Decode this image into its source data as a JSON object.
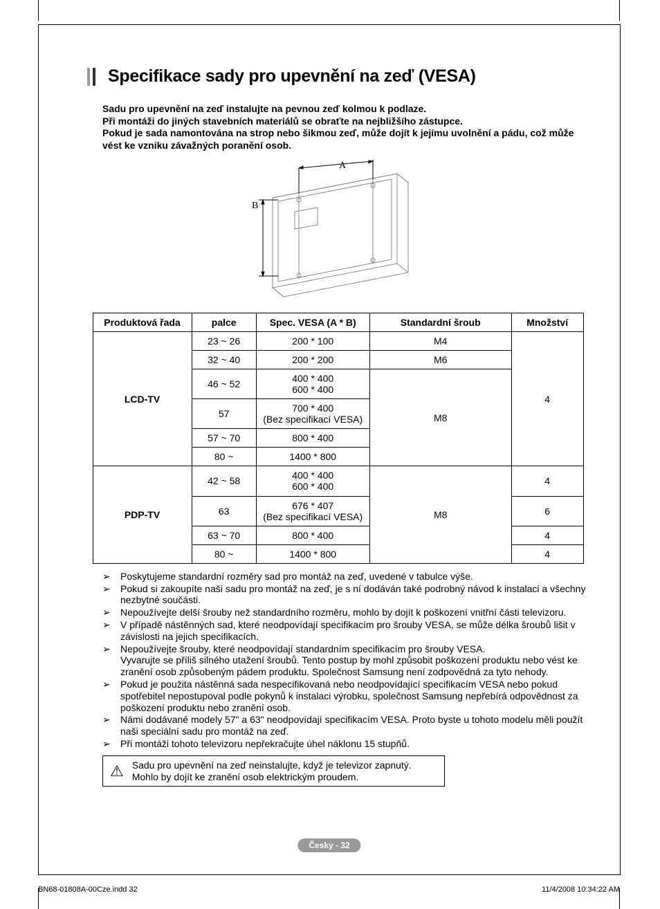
{
  "title": "Specifikace sady pro upevnění na zeď (VESA)",
  "intro": [
    "Sadu pro upevnění na zeď instalujte na pevnou zeď kolmou k podlaze.",
    "Při montáži do jiných stavebních materiálů se obraťte na nejbližšího zástupce.",
    "Pokud je sada namontována na strop nebo šikmou zeď, může dojít k jejímu uvolnění a pádu, což může vést ke vzniku závažných poranění osob."
  ],
  "diagram": {
    "label_a": "A",
    "label_b": "B",
    "stroke": "#777777",
    "stroke_light": "#bbbbbb"
  },
  "table": {
    "headers": [
      "Produktová řada",
      "palce",
      "Spec. VESA (A * B)",
      "Standardní šroub",
      "Množství"
    ],
    "groups": [
      {
        "product": "LCD-TV",
        "qty_span": 6,
        "qty": "4",
        "rows": [
          {
            "inch": "23 ~ 26",
            "spec": "200 * 100",
            "screw": "M4",
            "screw_span": 1
          },
          {
            "inch": "32 ~ 40",
            "spec": "200 * 200",
            "screw": "M6",
            "screw_span": 1
          },
          {
            "inch": "46 ~ 52",
            "spec": "400 * 400\n600 * 400",
            "screw": "M8",
            "screw_span": 4
          },
          {
            "inch": "57",
            "spec": "700 * 400\n(Bez specifikací VESA)"
          },
          {
            "inch": "57 ~ 70",
            "spec": "800 * 400"
          },
          {
            "inch": "80 ~",
            "spec": "1400 * 800"
          }
        ]
      },
      {
        "product": "PDP-TV",
        "rows": [
          {
            "inch": "42 ~ 58",
            "spec": "400 * 400\n600 * 400",
            "screw": "M8",
            "screw_span": 4,
            "qty": "4"
          },
          {
            "inch": "63",
            "spec": "676 * 407\n(Bez specifikací VESA)",
            "qty": "6"
          },
          {
            "inch": "63 ~ 70",
            "spec": "800 * 400",
            "qty": "4"
          },
          {
            "inch": "80 ~",
            "spec": "1400 * 800",
            "qty": "4"
          }
        ]
      }
    ]
  },
  "notes": [
    "Poskytujeme standardní rozměry sad pro montáž na zeď, uvedené v tabulce výše.",
    "Pokud si zakoupíte naši sadu pro montáž na zeď, je s ní dodáván také podrobný návod k instalaci a všechny nezbytné součásti.",
    "Nepoužívejte delší šrouby než standardního rozměru, mohlo by dojít k poškození vnitřní části televizoru.",
    "V případě nástěnných sad, které neodpovídají specifikacím pro šrouby VESA, se může délka šroubů lišit v závislosti na jejich specifikacích.",
    "Nepoužívejte šrouby, které neodpovídají standardním specifikacím pro šrouby VESA.\nVyvarujte se příliš silného utažení šroubů. Tento postup by mohl způsobit poškození produktu nebo vést ke zranění osob způsobeným pádem produktu. Společnost Samsung není zodpovědná za tyto nehody.",
    "Pokud je použita nástěnná sada nespecifikovaná nebo neodpovídající specifikacím VESA nebo pokud spotřebitel nepostupoval podle pokynů k instalaci výrobku, společnost Samsung nepřebírá odpovědnost za poškození produktu nebo zranění osob.",
    "Námi dodávané modely 57\" a 63\" neodpovídají specifikacím VESA. Proto byste u tohoto modelu měli použít naši speciální sadu pro montáž na zeď.",
    "Při montáži tohoto televizoru nepřekračujte úhel náklonu 15 stupňů."
  ],
  "warning": "Sadu pro upevnění na zeď neinstalujte, když je televizor zapnutý.\nMohlo by dojít ke zranění osob elektrickým proudem.",
  "pageBadge": "Česky - 32",
  "footer": {
    "left": "BN68-01808A-00Cze.indd   32",
    "right": "11/4/2008   10:34:22 AM"
  }
}
